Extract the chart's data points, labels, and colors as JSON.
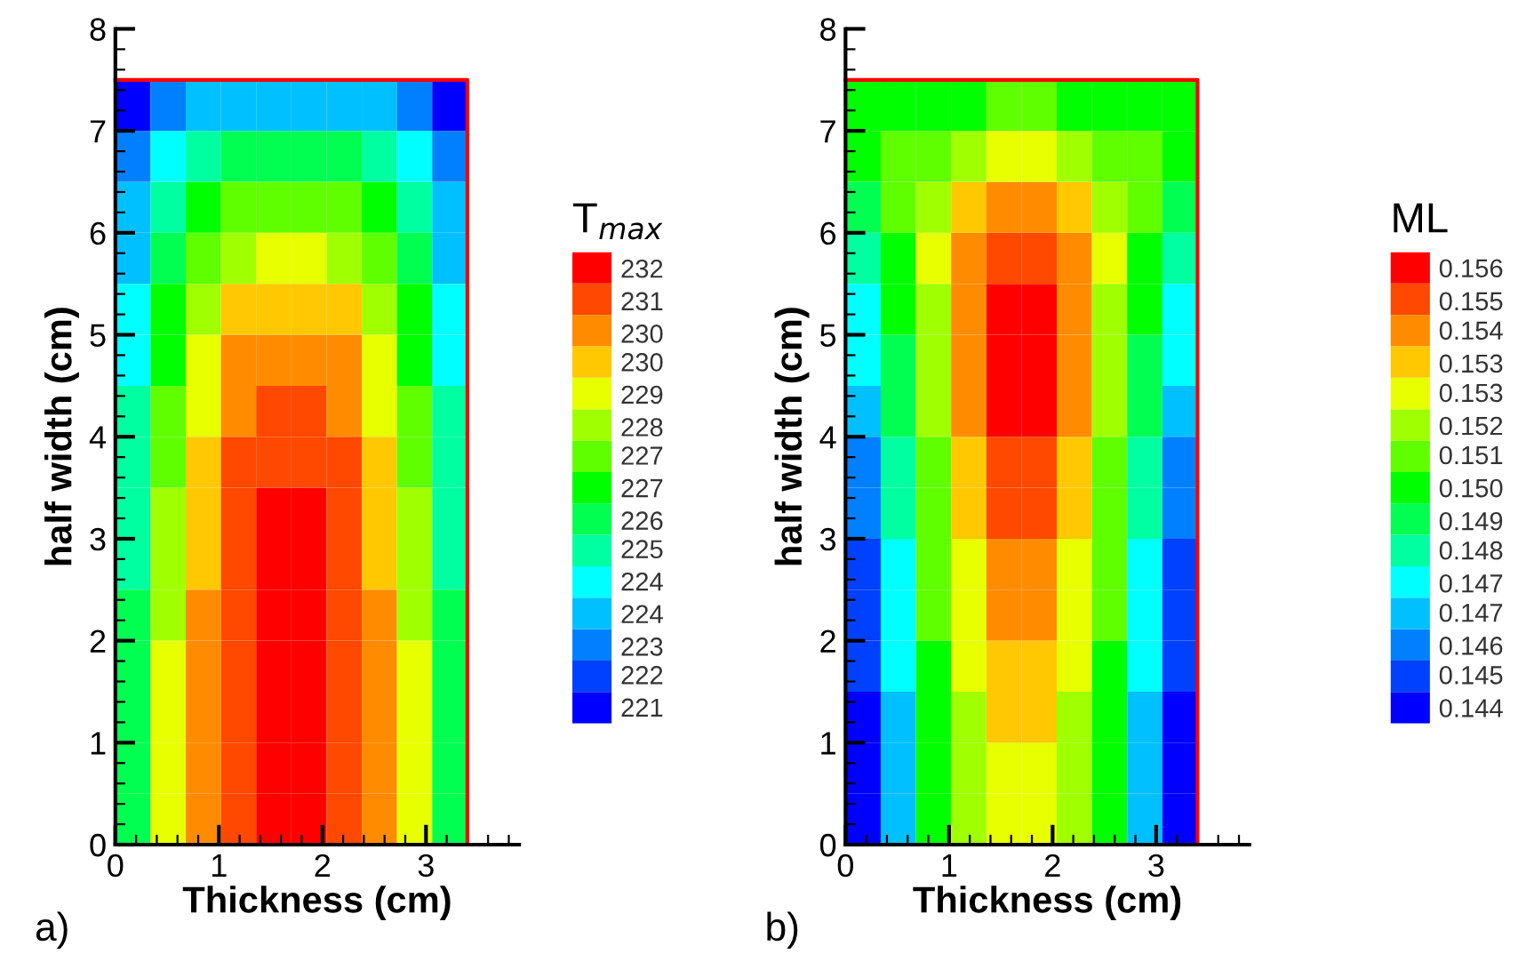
{
  "chart_data": [
    {
      "type": "heatmap",
      "xlabel": "Thickness (cm)",
      "ylabel": "half width (cm)",
      "clabel": "T$_{max}$",
      "annotations": [
        "a)"
      ],
      "x": [
        0.17,
        0.51,
        0.85,
        1.19,
        1.53,
        1.87,
        2.21,
        2.55,
        2.89,
        3.23
      ],
      "y": [
        0.25,
        0.75,
        1.25,
        1.75,
        2.25,
        2.75,
        3.25,
        3.75,
        4.25,
        4.75,
        5.25,
        5.75,
        6.25,
        6.75,
        7.25
      ],
      "cells": [
        [
          225.8,
          228.9,
          230.4,
          231.2,
          232.0,
          232.0,
          231.2,
          230.4,
          228.9,
          225.8
        ],
        [
          225.8,
          228.9,
          230.4,
          231.2,
          232.0,
          232.0,
          231.2,
          230.4,
          228.9,
          225.8
        ],
        [
          225.8,
          228.9,
          230.4,
          231.2,
          232.0,
          232.0,
          231.2,
          230.4,
          228.9,
          225.8
        ],
        [
          225.8,
          228.9,
          230.4,
          231.2,
          232.0,
          232.0,
          231.2,
          230.4,
          228.9,
          225.8
        ],
        [
          225.8,
          228.1,
          230.4,
          231.2,
          232.0,
          232.0,
          231.2,
          230.4,
          228.1,
          225.8
        ],
        [
          225.1,
          228.1,
          229.7,
          231.2,
          232.0,
          232.0,
          231.2,
          229.7,
          228.1,
          225.1
        ],
        [
          225.1,
          228.1,
          229.7,
          231.2,
          232.0,
          232.0,
          231.2,
          229.7,
          228.1,
          225.1
        ],
        [
          225.1,
          227.4,
          229.7,
          231.2,
          231.2,
          231.2,
          231.2,
          229.7,
          227.4,
          225.1
        ],
        [
          225.1,
          227.4,
          228.9,
          230.4,
          231.2,
          231.2,
          230.4,
          228.9,
          227.4,
          225.1
        ],
        [
          224.3,
          226.6,
          228.9,
          230.4,
          230.4,
          230.4,
          230.4,
          228.9,
          226.6,
          224.3
        ],
        [
          224.3,
          226.6,
          228.1,
          229.7,
          229.7,
          229.7,
          229.7,
          228.1,
          226.6,
          224.3
        ],
        [
          223.5,
          225.8,
          227.4,
          228.1,
          228.9,
          228.9,
          228.1,
          227.4,
          225.8,
          223.5
        ],
        [
          223.5,
          225.1,
          226.6,
          227.4,
          227.4,
          227.4,
          227.4,
          226.6,
          225.1,
          223.5
        ],
        [
          222.7,
          224.3,
          225.1,
          225.8,
          225.8,
          225.8,
          225.8,
          225.1,
          224.3,
          222.7
        ],
        [
          221.2,
          222.7,
          223.5,
          223.5,
          223.5,
          223.5,
          223.5,
          223.5,
          222.7,
          221.2
        ]
      ],
      "colors": [
        "#0000ff",
        "#0040ff",
        "#0080ff",
        "#00c0ff",
        "#00ffff",
        "#00ffa0",
        "#00ff50",
        "#00ff00",
        "#60ff00",
        "#a0ff00",
        "#e8ff00",
        "#ffc800",
        "#ff8c00",
        "#ff4800",
        "#ff0000"
      ],
      "clim": [
        220.8,
        232.4
      ],
      "cticks": [
        {
          "value": 221.2,
          "label": "221"
        },
        {
          "value": 222.0,
          "label": "222"
        },
        {
          "value": 222.7,
          "label": "223"
        },
        {
          "value": 223.5,
          "label": "224"
        },
        {
          "value": 224.3,
          "label": "224"
        },
        {
          "value": 225.1,
          "label": "225"
        },
        {
          "value": 225.8,
          "label": "226"
        },
        {
          "value": 226.6,
          "label": "227"
        },
        {
          "value": 227.4,
          "label": "227"
        },
        {
          "value": 228.1,
          "label": "228"
        },
        {
          "value": 228.9,
          "label": "229"
        },
        {
          "value": 229.7,
          "label": "230"
        },
        {
          "value": 230.4,
          "label": "230"
        },
        {
          "value": 231.2,
          "label": "231"
        },
        {
          "value": 232.0,
          "label": "232"
        }
      ],
      "xlim": [
        0,
        3.9
      ],
      "ylim": [
        0,
        8
      ],
      "xticks": [
        0,
        1,
        2,
        3
      ],
      "yticks": [
        0,
        1,
        2,
        3,
        4,
        5,
        6,
        7,
        8
      ]
    },
    {
      "type": "heatmap",
      "xlabel": "Thickness (cm)",
      "ylabel": "half width (cm)",
      "clabel": "ML",
      "annotations": [
        "b)"
      ],
      "x": [
        0.17,
        0.51,
        0.85,
        1.19,
        1.53,
        1.87,
        2.21,
        2.55,
        2.89,
        3.23
      ],
      "y": [
        0.25,
        0.75,
        1.25,
        1.75,
        2.25,
        2.75,
        3.25,
        3.75,
        4.25,
        4.75,
        5.25,
        5.75,
        6.25,
        6.75,
        7.25
      ],
      "cells": [
        [
          0.144,
          0.1466,
          0.15,
          0.1517,
          0.1526,
          0.1526,
          0.1517,
          0.15,
          0.1466,
          0.144
        ],
        [
          0.144,
          0.1466,
          0.15,
          0.1517,
          0.1526,
          0.1526,
          0.1517,
          0.15,
          0.1466,
          0.144
        ],
        [
          0.144,
          0.1466,
          0.15,
          0.1517,
          0.1534,
          0.1534,
          0.1517,
          0.15,
          0.1466,
          0.144
        ],
        [
          0.1449,
          0.1474,
          0.15,
          0.1526,
          0.1534,
          0.1534,
          0.1526,
          0.15,
          0.1474,
          0.1449
        ],
        [
          0.1449,
          0.1474,
          0.1509,
          0.1526,
          0.1543,
          0.1543,
          0.1526,
          0.1509,
          0.1474,
          0.1449
        ],
        [
          0.1449,
          0.1474,
          0.1509,
          0.1526,
          0.1543,
          0.1543,
          0.1526,
          0.1509,
          0.1474,
          0.1449
        ],
        [
          0.1457,
          0.1483,
          0.1509,
          0.1534,
          0.1551,
          0.1551,
          0.1534,
          0.1509,
          0.1483,
          0.1457
        ],
        [
          0.1457,
          0.1483,
          0.1509,
          0.1534,
          0.1551,
          0.1551,
          0.1534,
          0.1509,
          0.1483,
          0.1457
        ],
        [
          0.1466,
          0.1491,
          0.1517,
          0.1543,
          0.156,
          0.156,
          0.1543,
          0.1517,
          0.1491,
          0.1466
        ],
        [
          0.1474,
          0.1491,
          0.1517,
          0.1543,
          0.156,
          0.156,
          0.1543,
          0.1517,
          0.1491,
          0.1474
        ],
        [
          0.1474,
          0.15,
          0.1517,
          0.1543,
          0.156,
          0.156,
          0.1543,
          0.1517,
          0.15,
          0.1474
        ],
        [
          0.1483,
          0.15,
          0.1526,
          0.1543,
          0.1551,
          0.1551,
          0.1543,
          0.1526,
          0.15,
          0.1483
        ],
        [
          0.1491,
          0.1509,
          0.1517,
          0.1534,
          0.1543,
          0.1543,
          0.1534,
          0.1517,
          0.1509,
          0.1491
        ],
        [
          0.15,
          0.1509,
          0.1509,
          0.1517,
          0.1526,
          0.1526,
          0.1517,
          0.1509,
          0.1509,
          0.15
        ],
        [
          0.15,
          0.15,
          0.15,
          0.15,
          0.1509,
          0.1509,
          0.15,
          0.15,
          0.15,
          0.15
        ]
      ],
      "colors": [
        "#0000ff",
        "#0040ff",
        "#0080ff",
        "#00c0ff",
        "#00ffff",
        "#00ffa0",
        "#00ff50",
        "#00ff00",
        "#60ff00",
        "#a0ff00",
        "#e8ff00",
        "#ffc800",
        "#ff8c00",
        "#ff4800",
        "#ff0000"
      ],
      "clim": [
        0.14357,
        0.15643
      ],
      "cticks": [
        {
          "value": 0.144,
          "label": "0.144"
        },
        {
          "value": 0.1449,
          "label": "0.145"
        },
        {
          "value": 0.1457,
          "label": "0.146"
        },
        {
          "value": 0.1466,
          "label": "0.147"
        },
        {
          "value": 0.1474,
          "label": "0.147"
        },
        {
          "value": 0.1483,
          "label": "0.148"
        },
        {
          "value": 0.1491,
          "label": "0.149"
        },
        {
          "value": 0.15,
          "label": "0.150"
        },
        {
          "value": 0.1509,
          "label": "0.151"
        },
        {
          "value": 0.1517,
          "label": "0.152"
        },
        {
          "value": 0.1526,
          "label": "0.153"
        },
        {
          "value": 0.1534,
          "label": "0.153"
        },
        {
          "value": 0.1543,
          "label": "0.154"
        },
        {
          "value": 0.1551,
          "label": "0.155"
        },
        {
          "value": 0.156,
          "label": "0.156"
        }
      ],
      "xlim": [
        0,
        3.9
      ],
      "ylim": [
        0,
        8
      ],
      "xticks": [
        0,
        1,
        2,
        3
      ],
      "yticks": [
        0,
        1,
        2,
        3,
        4,
        5,
        6,
        7,
        8
      ]
    }
  ]
}
